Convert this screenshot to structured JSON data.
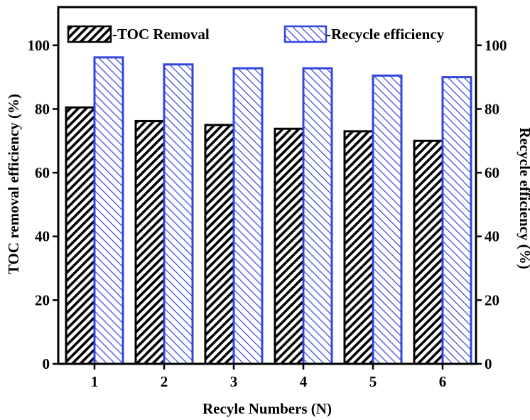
{
  "chart_data": {
    "type": "bar",
    "xlabel": "Recyle Numbers (N)",
    "ylabel": "TOC removal efficiency (%)",
    "y2label": "Recycle efficiency  (%)",
    "categories": [
      "1",
      "2",
      "3",
      "4",
      "5",
      "6"
    ],
    "ylim": [
      0,
      112
    ],
    "y2lim": [
      0,
      112
    ],
    "yticks": [
      0,
      20,
      40,
      60,
      80,
      100
    ],
    "legend_position": "top",
    "series": [
      {
        "name": "-TOC Removal",
        "axis": "left",
        "values": [
          80.5,
          76.2,
          75.0,
          73.8,
          73.0,
          70.0
        ],
        "color": "#000000",
        "hatch": "dense-black-diagonal"
      },
      {
        "name": "-Recycle efficiency",
        "axis": "right",
        "values": [
          96.2,
          94.0,
          92.8,
          92.8,
          90.5,
          90.0
        ],
        "color": "#3344dd",
        "hatch": "blue-diagonal"
      }
    ]
  }
}
